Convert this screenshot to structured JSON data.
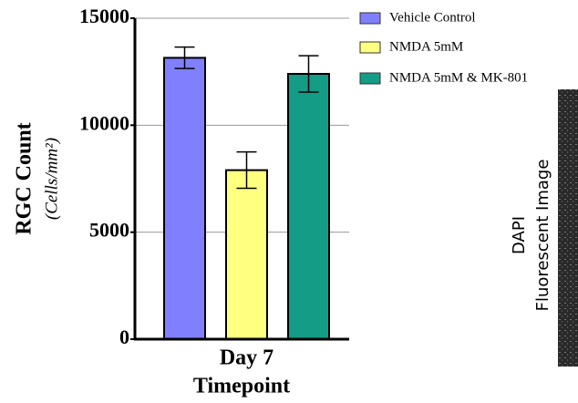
{
  "chart_data": {
    "type": "bar",
    "categories": [
      "Day 7"
    ],
    "x_label": "Timepoint",
    "y_label": "RGC Count",
    "y_unit": "(Cells/mm²)",
    "series": [
      {
        "name": "Vehicle Control",
        "color": "#8080ff",
        "values": [
          13150
        ],
        "errors": [
          500
        ]
      },
      {
        "name": "NMDA 5mM",
        "color": "#ffff80",
        "values": [
          7900
        ],
        "errors": [
          850
        ]
      },
      {
        "name": "NMDA 5mM & MK-801",
        "color": "#159c86",
        "values": [
          12400
        ],
        "errors": [
          850
        ]
      }
    ],
    "ylim": [
      0,
      15000
    ],
    "yticks": [
      0,
      5000,
      10000,
      15000
    ],
    "grid": true,
    "legend": "right",
    "side_labels": [
      "DAPI",
      "Fluorescent Image"
    ]
  }
}
